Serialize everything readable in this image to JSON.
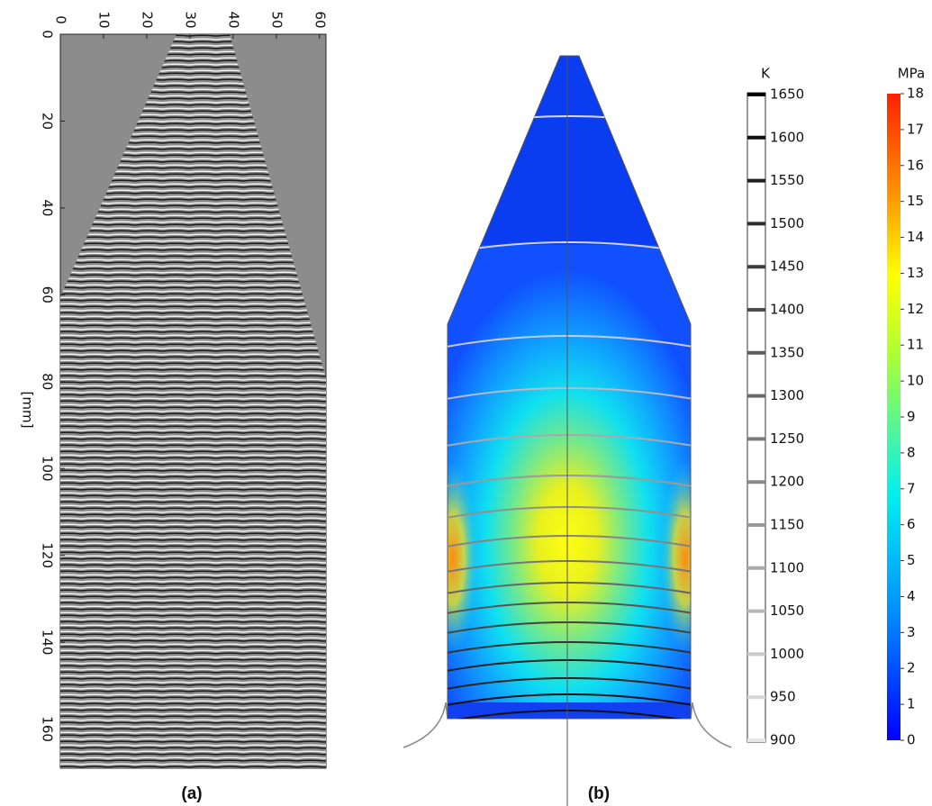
{
  "panel_a": {
    "label": "(a)",
    "axis_label": "[mm]",
    "width_lim": [
      0,
      61.5
    ],
    "width_ticks": [
      0,
      10,
      20,
      30,
      40,
      50,
      60
    ],
    "depth_lim": [
      0,
      169
    ],
    "depth_ticks": [
      0,
      20,
      40,
      60,
      80,
      100,
      120,
      140,
      160
    ]
  },
  "panel_b": {
    "label": "(b)",
    "temperature_bar": {
      "unit": "K",
      "lim": [
        900,
        1650
      ],
      "ticks": [
        900,
        950,
        1000,
        1050,
        1100,
        1150,
        1200,
        1250,
        1300,
        1350,
        1400,
        1450,
        1500,
        1550,
        1600,
        1650
      ]
    },
    "stress_bar": {
      "unit": "MPa",
      "lim": [
        0,
        18
      ],
      "ticks": [
        0,
        1,
        2,
        3,
        4,
        5,
        6,
        7,
        8,
        9,
        10,
        11,
        12,
        13,
        14,
        15,
        16,
        17,
        18
      ]
    }
  }
}
